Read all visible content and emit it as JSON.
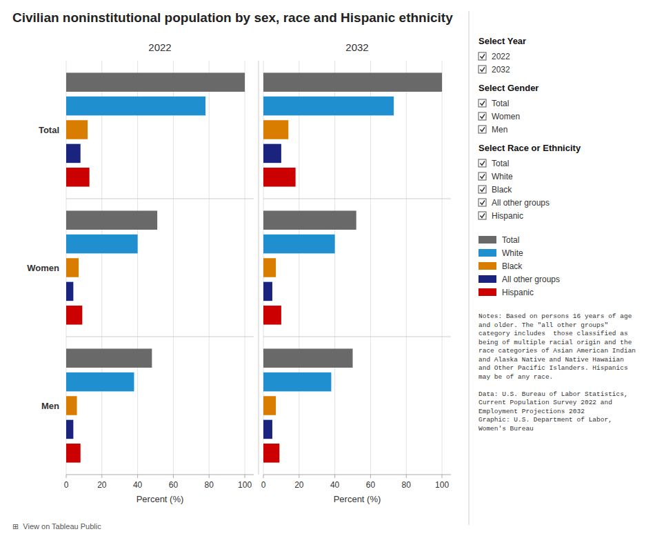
{
  "title": "Civilian noninstitutional population by sex, race and Hispanic ethnicity",
  "annotations": [
    [
      "Select Year",
      "2022",
      "2032"
    ],
    [
      "Select Gender",
      "Total",
      "Women",
      "Men"
    ],
    [
      "Select Race or Ethnicity",
      "Total",
      "White",
      "Black",
      "All other groups",
      "Hispanic"
    ],
    "Notes: Based on persons 16 years of age\nand older. The \"all other groups\"\ncategory includes  those classified as\nbeing of multiple racial origin and the\nrace categories of Asian American Indian\nand Alaska Native and Native Hawaiian\nand Other Pacific Islanders. Hispanics\nmay be of any race.\n\nData: U.S. Bureau of Labor Statistics,\nCurrent Population Survey 2022 and\nEmployment Projections 2032\nGraphic: U.S. Department of Labor,\nWomen's Bureau",
    "⊞  View on Tableau Public"
  ],
  "chart_data": [
    {
      "type": "bar",
      "orientation": "horizontal",
      "title": "2022",
      "categories": [
        "Total",
        "Women",
        "Men"
      ],
      "series": [
        {
          "name": "Total",
          "color": "#696969",
          "values": [
            100,
            51,
            48
          ]
        },
        {
          "name": "White",
          "color": "#1f8fcf",
          "values": [
            78,
            40,
            38
          ]
        },
        {
          "name": "Black",
          "color": "#d97d00",
          "values": [
            12,
            7,
            6
          ]
        },
        {
          "name": "All other groups",
          "color": "#1a237e",
          "values": [
            8,
            4,
            4
          ]
        },
        {
          "name": "Hispanic",
          "color": "#cc0000",
          "values": [
            13,
            9,
            8
          ]
        }
      ],
      "xlabel": "Percent (%)",
      "xlim": [
        0,
        105
      ],
      "xticks": [
        0,
        20,
        40,
        60,
        80,
        100
      ],
      "grid": true,
      "legend": "right"
    },
    {
      "type": "bar",
      "orientation": "horizontal",
      "title": "2032",
      "categories": [
        "Total",
        "Women",
        "Men"
      ],
      "series": [
        {
          "name": "Total",
          "color": "#696969",
          "values": [
            100,
            52,
            50
          ]
        },
        {
          "name": "White",
          "color": "#1f8fcf",
          "values": [
            73,
            40,
            38
          ]
        },
        {
          "name": "Black",
          "color": "#d97d00",
          "values": [
            14,
            7,
            7
          ]
        },
        {
          "name": "All other groups",
          "color": "#1a237e",
          "values": [
            10,
            5,
            5
          ]
        },
        {
          "name": "Hispanic",
          "color": "#cc0000",
          "values": [
            18,
            10,
            9
          ]
        }
      ],
      "xlabel": "Percent (%)",
      "xlim": [
        0,
        105
      ],
      "xticks": [
        0,
        20,
        40,
        60,
        80,
        100
      ],
      "grid": true,
      "tick_labels": "x"
    }
  ]
}
